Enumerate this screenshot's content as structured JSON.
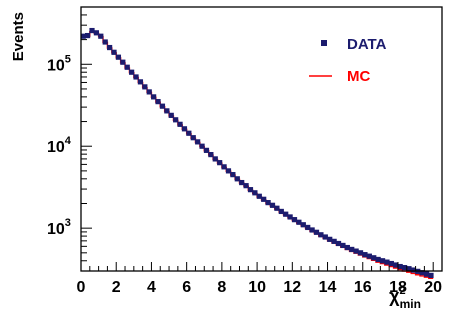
{
  "chart_data": {
    "type": "scatter",
    "x_axis": {
      "label": "χ",
      "label_superscript": "2",
      "label_subscript": "min",
      "range": [
        0,
        20.5
      ],
      "ticks": [
        0,
        2,
        4,
        6,
        8,
        10,
        12,
        14,
        16,
        18,
        20
      ],
      "tick_labels": [
        "0",
        "2",
        "4",
        "6",
        "8",
        "10",
        "12",
        "14",
        "16",
        "18",
        "20"
      ]
    },
    "y_axis": {
      "label": "Events",
      "scale": "log",
      "range": [
        300,
        500000
      ],
      "ticks": [
        1000,
        10000,
        100000
      ],
      "tick_labels": [
        {
          "base": "10",
          "exp": "3"
        },
        {
          "base": "10",
          "exp": "4"
        },
        {
          "base": "10",
          "exp": "5"
        }
      ]
    },
    "grid": false,
    "legend": {
      "placement": "top-right",
      "entries": [
        {
          "name": "DATA",
          "style": "markers",
          "color": "#1c1c6e"
        },
        {
          "name": "MC",
          "style": "line",
          "color": "#ff0000"
        }
      ]
    },
    "series": [
      {
        "name": "DATA",
        "color": "#1c1c6e",
        "x": [
          0.125,
          0.375,
          0.625,
          0.875,
          1.125,
          1.375,
          1.625,
          1.875,
          2.125,
          2.375,
          2.625,
          2.875,
          3.125,
          3.375,
          3.625,
          3.875,
          4.125,
          4.375,
          4.625,
          4.875,
          5.125,
          5.375,
          5.625,
          5.875,
          6.125,
          6.375,
          6.625,
          6.875,
          7.125,
          7.375,
          7.625,
          7.875,
          8.125,
          8.375,
          8.625,
          8.875,
          9.125,
          9.375,
          9.625,
          9.875,
          10.125,
          10.375,
          10.625,
          10.875,
          11.125,
          11.375,
          11.625,
          11.875,
          12.125,
          12.375,
          12.625,
          12.875,
          13.125,
          13.375,
          13.625,
          13.875,
          14.125,
          14.375,
          14.625,
          14.875,
          15.125,
          15.375,
          15.625,
          15.875,
          16.125,
          16.375,
          16.625,
          16.875,
          17.125,
          17.375,
          17.625,
          17.875,
          18.125,
          18.375,
          18.625,
          18.875,
          19.125,
          19.375,
          19.625,
          19.875
        ],
        "values": [
          220000,
          224000,
          258000,
          242000,
          220000,
          187000,
          160000,
          140000,
          122000,
          106000,
          92000,
          80000,
          70000,
          61000,
          53000,
          46000,
          40000,
          35000,
          30800,
          27000,
          23800,
          21000,
          18500,
          16300,
          14400,
          12700,
          11300,
          10000,
          8900,
          7900,
          7000,
          6300,
          5600,
          5000,
          4500,
          4000,
          3600,
          3300,
          2950,
          2700,
          2450,
          2250,
          2050,
          1900,
          1750,
          1600,
          1480,
          1370,
          1270,
          1180,
          1100,
          1020,
          950,
          890,
          830,
          780,
          730,
          690,
          650,
          615,
          580,
          550,
          525,
          500,
          475,
          455,
          435,
          415,
          400,
          385,
          370,
          355,
          340,
          330,
          320,
          308,
          297,
          286,
          275,
          265
        ]
      },
      {
        "name": "MC",
        "color": "#ff0000",
        "x": [
          0.125,
          0.375,
          0.625,
          0.875,
          1.125,
          1.375,
          1.625,
          1.875,
          2.125,
          2.375,
          2.625,
          2.875,
          3.125,
          3.375,
          3.625,
          3.875,
          4.125,
          4.375,
          4.625,
          4.875,
          5.125,
          5.375,
          5.625,
          5.875,
          6.125,
          6.375,
          6.625,
          6.875,
          7.125,
          7.375,
          7.625,
          7.875,
          8.125,
          8.375,
          8.625,
          8.875,
          9.125,
          9.375,
          9.625,
          9.875,
          10.125,
          10.375,
          10.625,
          10.875,
          11.125,
          11.375,
          11.625,
          11.875,
          12.125,
          12.375,
          12.625,
          12.875,
          13.125,
          13.375,
          13.625,
          13.875,
          14.125,
          14.375,
          14.625,
          14.875,
          15.125,
          15.375,
          15.625,
          15.875,
          16.125,
          16.375,
          16.625,
          16.875,
          17.125,
          17.375,
          17.625,
          17.875,
          18.125,
          18.375,
          18.625,
          18.875,
          19.125,
          19.375,
          19.625,
          19.875
        ],
        "values": [
          215000,
          220000,
          250000,
          238000,
          218000,
          185000,
          158000,
          138000,
          120000,
          104000,
          90000,
          79000,
          69000,
          60000,
          52000,
          45500,
          39500,
          34500,
          30300,
          26500,
          23400,
          20700,
          18200,
          16100,
          14200,
          12500,
          11100,
          9900,
          8800,
          7800,
          6900,
          6200,
          5500,
          4950,
          4450,
          3950,
          3550,
          3250,
          2900,
          2650,
          2400,
          2200,
          2000,
          1860,
          1710,
          1570,
          1450,
          1340,
          1240,
          1150,
          1070,
          990,
          920,
          860,
          800,
          750,
          700,
          660,
          620,
          585,
          550,
          520,
          495,
          470,
          445,
          425,
          405,
          385,
          370,
          355,
          340,
          326,
          312,
          300,
          290,
          280,
          270,
          261,
          252,
          244
        ]
      }
    ]
  }
}
